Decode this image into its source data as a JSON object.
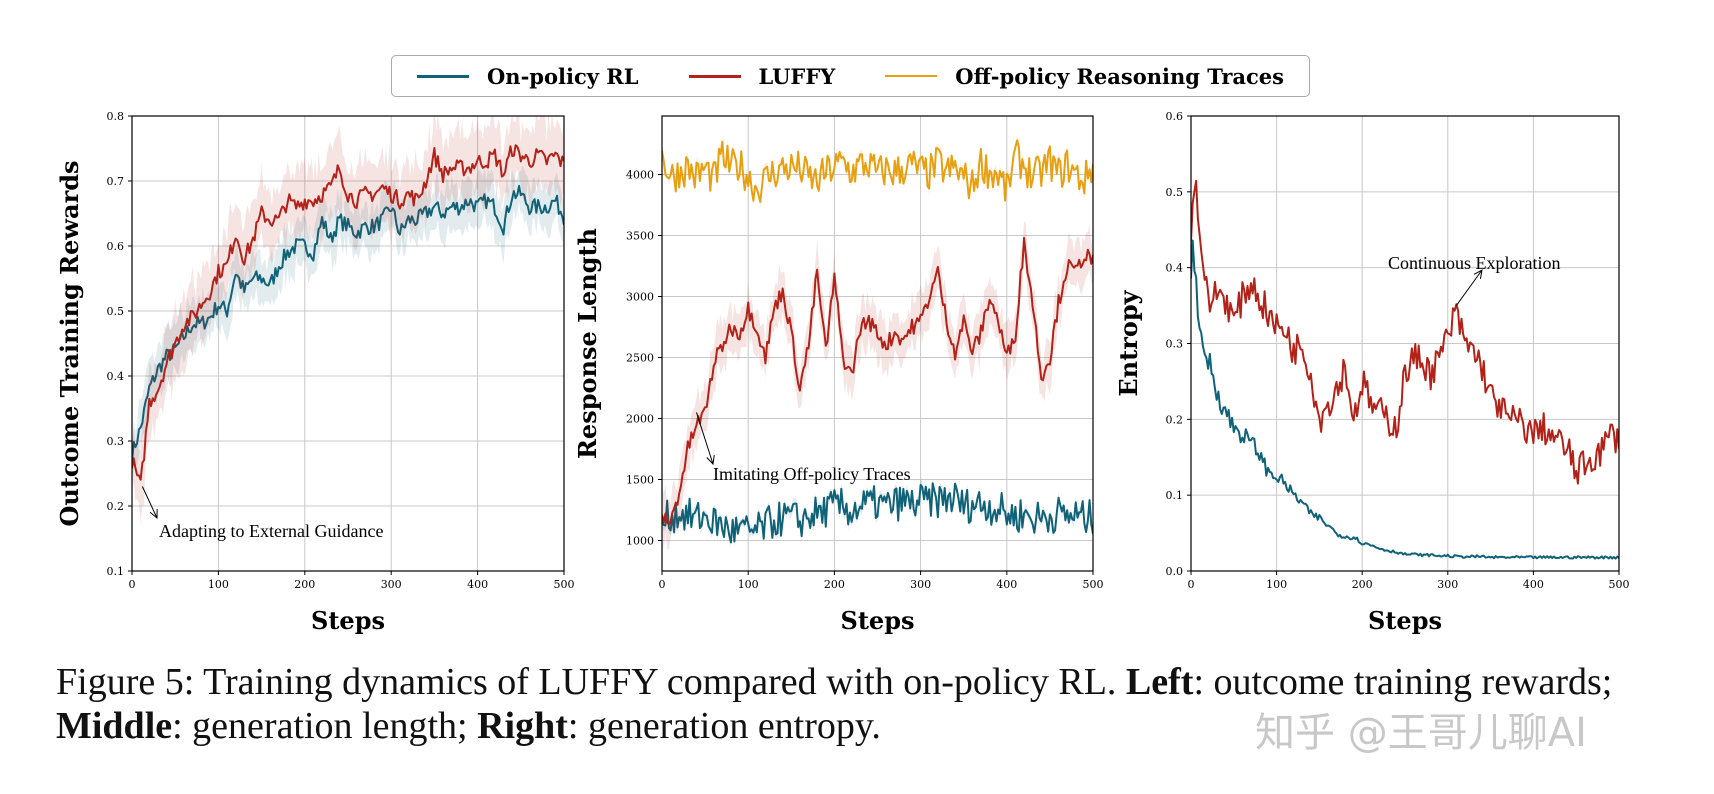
{
  "legend": [
    {
      "label": "On-policy RL",
      "color": "#0f6278"
    },
    {
      "label": "LUFFY",
      "color": "#b22218"
    },
    {
      "label": "Off-policy Reasoning Traces",
      "color": "#e8a013"
    }
  ],
  "chart_data": [
    {
      "type": "line",
      "xlabel": "Steps",
      "ylabel": "Outcome Training Rewards",
      "xlim": [
        0,
        500
      ],
      "ylim": [
        0.1,
        0.8
      ],
      "xticks": [
        "0",
        "100",
        "200",
        "300",
        "400",
        "500"
      ],
      "yticks": [
        "0.1",
        "0.2",
        "0.3",
        "0.4",
        "0.5",
        "0.6",
        "0.7",
        "0.8"
      ],
      "grid": true,
      "x": [
        0,
        10,
        20,
        30,
        40,
        50,
        60,
        70,
        80,
        90,
        100,
        110,
        120,
        130,
        140,
        150,
        160,
        170,
        180,
        190,
        200,
        210,
        220,
        230,
        240,
        250,
        260,
        270,
        280,
        290,
        300,
        310,
        320,
        330,
        340,
        350,
        360,
        370,
        380,
        390,
        400,
        410,
        420,
        430,
        440,
        450,
        460,
        470,
        480,
        490,
        500
      ],
      "series": [
        {
          "name": "On-policy RL",
          "band": 0.035,
          "values": [
            0.28,
            0.32,
            0.38,
            0.41,
            0.43,
            0.44,
            0.46,
            0.48,
            0.48,
            0.49,
            0.51,
            0.5,
            0.56,
            0.53,
            0.55,
            0.55,
            0.54,
            0.57,
            0.59,
            0.6,
            0.6,
            0.59,
            0.64,
            0.61,
            0.64,
            0.63,
            0.62,
            0.63,
            0.63,
            0.64,
            0.66,
            0.62,
            0.64,
            0.64,
            0.65,
            0.66,
            0.65,
            0.66,
            0.66,
            0.67,
            0.66,
            0.67,
            0.66,
            0.63,
            0.68,
            0.68,
            0.66,
            0.66,
            0.66,
            0.67,
            0.645
          ]
        },
        {
          "name": "LUFFY",
          "band": 0.05,
          "values": [
            0.27,
            0.23,
            0.36,
            0.38,
            0.42,
            0.45,
            0.48,
            0.49,
            0.51,
            0.53,
            0.56,
            0.57,
            0.62,
            0.58,
            0.61,
            0.65,
            0.64,
            0.64,
            0.67,
            0.66,
            0.67,
            0.67,
            0.68,
            0.69,
            0.72,
            0.68,
            0.67,
            0.68,
            0.68,
            0.69,
            0.68,
            0.67,
            0.68,
            0.67,
            0.7,
            0.74,
            0.71,
            0.72,
            0.72,
            0.72,
            0.73,
            0.73,
            0.74,
            0.71,
            0.75,
            0.74,
            0.73,
            0.74,
            0.73,
            0.74,
            0.725
          ]
        }
      ],
      "annotation": {
        "text": "Adapting to External Guidance",
        "x": 12,
        "y": 0.23
      }
    },
    {
      "type": "line",
      "xlabel": "Steps",
      "ylabel": "Response Length",
      "xlim": [
        0,
        500
      ],
      "ylim": [
        750,
        4480
      ],
      "xticks": [
        "0",
        "100",
        "200",
        "300",
        "400",
        "500"
      ],
      "yticks": [
        "1000",
        "1500",
        "2000",
        "2500",
        "3000",
        "3500",
        "4000"
      ],
      "grid": true,
      "x": [
        0,
        10,
        20,
        30,
        40,
        50,
        60,
        70,
        80,
        90,
        100,
        110,
        120,
        130,
        140,
        150,
        160,
        170,
        180,
        190,
        200,
        210,
        220,
        230,
        240,
        250,
        260,
        270,
        280,
        290,
        300,
        310,
        320,
        330,
        340,
        350,
        360,
        370,
        380,
        390,
        400,
        410,
        420,
        430,
        440,
        450,
        460,
        470,
        480,
        490,
        500
      ],
      "series": [
        {
          "name": "Off-policy Reasoning Traces",
          "band": 40,
          "values": [
            4150,
            3980,
            4020,
            4060,
            3980,
            4050,
            3960,
            4150,
            4060,
            4080,
            3980,
            3880,
            3960,
            4020,
            4050,
            4060,
            4050,
            3980,
            3940,
            4020,
            4060,
            4100,
            4020,
            4080,
            4080,
            4010,
            4040,
            4020,
            4050,
            4080,
            4030,
            4010,
            4100,
            4020,
            4050,
            3980,
            3900,
            4100,
            4020,
            4000,
            3860,
            4150,
            4080,
            3980,
            4020,
            4110,
            4000,
            4080,
            4000,
            3950,
            4080
          ]
        },
        {
          "name": "On-policy RL",
          "band": 40,
          "values": [
            1150,
            1200,
            1230,
            1200,
            1180,
            1200,
            1150,
            1120,
            1080,
            1080,
            1070,
            1080,
            1120,
            1160,
            1180,
            1190,
            1160,
            1200,
            1220,
            1250,
            1280,
            1280,
            1240,
            1280,
            1300,
            1300,
            1280,
            1300,
            1320,
            1300,
            1320,
            1320,
            1330,
            1340,
            1350,
            1280,
            1300,
            1300,
            1280,
            1260,
            1220,
            1200,
            1220,
            1180,
            1190,
            1200,
            1220,
            1200,
            1210,
            1180,
            1190
          ]
        },
        {
          "name": "LUFFY",
          "band": 180,
          "values": [
            1200,
            1150,
            1400,
            1750,
            1950,
            2050,
            2450,
            2600,
            2750,
            2700,
            2900,
            2750,
            2500,
            2900,
            3050,
            2700,
            2250,
            2600,
            3200,
            2550,
            3150,
            2500,
            2350,
            2750,
            2800,
            2700,
            2600,
            2700,
            2650,
            2750,
            2800,
            3000,
            3200,
            2800,
            2550,
            2800,
            2550,
            2700,
            3000,
            2800,
            2500,
            2700,
            3450,
            2950,
            2350,
            2500,
            2950,
            3250,
            3200,
            3350,
            3300
          ]
        }
      ],
      "annotation": {
        "text": "Imitating Off-policy Traces",
        "x": 40,
        "y": 2050
      }
    },
    {
      "type": "line",
      "xlabel": "Steps",
      "ylabel": "Entropy",
      "xlim": [
        0,
        500
      ],
      "ylim": [
        0.0,
        0.6
      ],
      "xticks": [
        "0",
        "100",
        "200",
        "300",
        "400",
        "500"
      ],
      "yticks": [
        "0.0",
        "0.1",
        "0.2",
        "0.3",
        "0.4",
        "0.5",
        "0.6"
      ],
      "grid": true,
      "x": [
        0,
        5,
        10,
        20,
        30,
        40,
        50,
        60,
        70,
        80,
        90,
        100,
        110,
        120,
        130,
        140,
        150,
        160,
        170,
        180,
        190,
        200,
        210,
        220,
        230,
        240,
        250,
        260,
        270,
        280,
        290,
        300,
        310,
        320,
        330,
        340,
        350,
        360,
        370,
        380,
        390,
        400,
        410,
        420,
        430,
        440,
        450,
        460,
        470,
        480,
        490,
        500
      ],
      "series": [
        {
          "name": "On-policy RL",
          "band": 0,
          "values": [
            0.4,
            0.43,
            0.3,
            0.28,
            0.24,
            0.21,
            0.19,
            0.18,
            0.17,
            0.155,
            0.13,
            0.125,
            0.115,
            0.1,
            0.09,
            0.075,
            0.07,
            0.06,
            0.05,
            0.045,
            0.045,
            0.037,
            0.034,
            0.03,
            0.027,
            0.025,
            0.022,
            0.022,
            0.021,
            0.021,
            0.02,
            0.02,
            0.019,
            0.019,
            0.019,
            0.019,
            0.018,
            0.018,
            0.018,
            0.018,
            0.018,
            0.018,
            0.018,
            0.018,
            0.018,
            0.018,
            0.018,
            0.018,
            0.018,
            0.018,
            0.018,
            0.018
          ]
        },
        {
          "name": "LUFFY",
          "band": 0,
          "values": [
            0.45,
            0.52,
            0.45,
            0.35,
            0.37,
            0.36,
            0.33,
            0.36,
            0.38,
            0.36,
            0.34,
            0.32,
            0.32,
            0.29,
            0.3,
            0.26,
            0.2,
            0.22,
            0.24,
            0.27,
            0.2,
            0.25,
            0.22,
            0.21,
            0.2,
            0.19,
            0.26,
            0.28,
            0.28,
            0.26,
            0.28,
            0.31,
            0.34,
            0.3,
            0.29,
            0.27,
            0.23,
            0.22,
            0.2,
            0.2,
            0.19,
            0.18,
            0.19,
            0.18,
            0.17,
            0.16,
            0.13,
            0.14,
            0.15,
            0.16,
            0.18,
            0.175
          ]
        }
      ],
      "annotation": {
        "text": "Continuous Exploration",
        "x": 310,
        "y": 0.35
      }
    }
  ],
  "caption": {
    "part1": "Figure 5: Training dynamics of LUFFY compared with on-policy RL. ",
    "left_bold": "Left",
    "part2": ": outcome training rewards;",
    "middle_bold": "Middle",
    "part3": ": generation length; ",
    "right_bold": "Right",
    "part4": ": generation entropy."
  },
  "watermark": "知乎 @王哥儿聊AI"
}
